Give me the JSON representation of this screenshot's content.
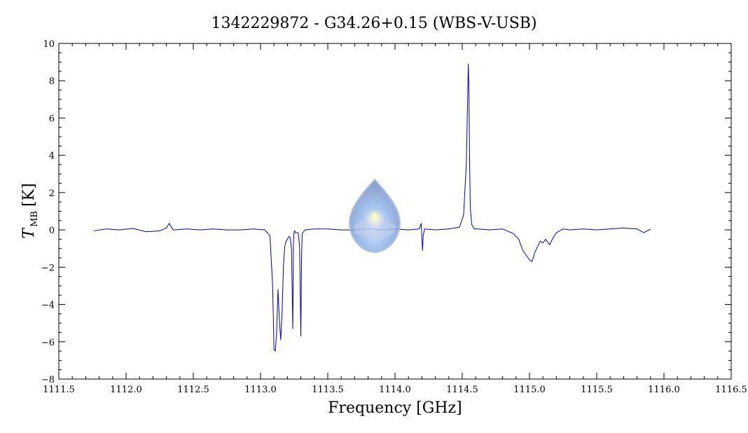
{
  "chart_data": {
    "type": "line",
    "title": "1342229872 - G34.26+0.15 (WBS-V-USB)",
    "xlabel": "Frequency [GHz]",
    "ylabel": "T",
    "ylabel_subscript": "MB",
    "ylabel_unit": "[K]",
    "xlim": [
      1111.5,
      1116.5
    ],
    "ylim": [
      -8,
      10
    ],
    "x_ticks": [
      1111.5,
      1112.0,
      1112.5,
      1113.0,
      1113.5,
      1114.0,
      1114.5,
      1115.0,
      1115.5,
      1116.0,
      1116.5
    ],
    "x_tick_labels": [
      "1111.5",
      "1112.0",
      "1112.5",
      "1113.0",
      "1113.5",
      "1114.0",
      "1114.5",
      "1115.0",
      "1115.5",
      "1116.0",
      "1116.5"
    ],
    "y_ticks": [
      -8,
      -6,
      -4,
      -2,
      0,
      2,
      4,
      6,
      8,
      10
    ],
    "y_tick_labels": [
      "−8",
      "−6",
      "−4",
      "−2",
      "0",
      "2",
      "4",
      "6",
      "8",
      "10"
    ],
    "grid": false,
    "line_color": "#0000cc",
    "logo": "herschel-droplet-logo",
    "series": [
      {
        "x": [
          1111.76,
          1111.85,
          1111.95,
          1112.05,
          1112.15,
          1112.25,
          1112.3,
          1112.32,
          1112.35,
          1112.45,
          1112.55,
          1112.65,
          1112.75,
          1112.85,
          1112.95,
          1113.03,
          1113.07,
          1113.09,
          1113.1,
          1113.11,
          1113.12,
          1113.13,
          1113.14,
          1113.15,
          1113.16,
          1113.17,
          1113.18,
          1113.19,
          1113.2,
          1113.21,
          1113.22,
          1113.23,
          1113.24,
          1113.245,
          1113.25,
          1113.255,
          1113.26,
          1113.28,
          1113.29,
          1113.295,
          1113.3,
          1113.305,
          1113.31,
          1113.33,
          1113.4,
          1113.5,
          1113.6,
          1113.7,
          1113.8,
          1113.9,
          1114.0,
          1114.1,
          1114.18,
          1114.195,
          1114.2,
          1114.205,
          1114.21,
          1114.22,
          1114.3,
          1114.4,
          1114.48,
          1114.51,
          1114.53,
          1114.54,
          1114.545,
          1114.55,
          1114.555,
          1114.56,
          1114.57,
          1114.59,
          1114.62,
          1114.7,
          1114.8,
          1114.88,
          1114.92,
          1114.95,
          1114.98,
          1115.0,
          1115.02,
          1115.04,
          1115.06,
          1115.08,
          1115.1,
          1115.12,
          1115.15,
          1115.17,
          1115.2,
          1115.25,
          1115.3,
          1115.4,
          1115.5,
          1115.6,
          1115.7,
          1115.8,
          1115.85,
          1115.9
        ],
        "y": [
          -0.05,
          0.05,
          0.0,
          0.08,
          -0.1,
          -0.05,
          0.1,
          0.35,
          0.0,
          0.05,
          0.0,
          0.05,
          0.0,
          0.0,
          0.05,
          0.0,
          -0.3,
          -3.0,
          -6.4,
          -6.5,
          -5.5,
          -3.2,
          -4.8,
          -5.9,
          -4.5,
          -2.0,
          -0.9,
          -0.6,
          -0.5,
          -0.35,
          -0.4,
          -1.0,
          -5.3,
          -0.5,
          -0.1,
          -0.05,
          -0.15,
          -0.15,
          -0.8,
          -3.0,
          -5.7,
          -1.5,
          -0.2,
          0.0,
          0.05,
          0.05,
          0.0,
          0.0,
          0.05,
          0.0,
          0.05,
          0.0,
          0.05,
          0.35,
          -0.5,
          -1.1,
          -0.3,
          0.05,
          0.0,
          0.05,
          0.15,
          0.8,
          3.5,
          7.0,
          8.9,
          7.5,
          3.5,
          1.2,
          0.3,
          0.05,
          0.05,
          0.0,
          0.05,
          -0.2,
          -0.5,
          -1.1,
          -1.4,
          -1.6,
          -1.7,
          -1.2,
          -0.9,
          -0.6,
          -0.7,
          -0.5,
          -0.8,
          -0.5,
          -0.15,
          0.05,
          0.0,
          0.05,
          0.0,
          0.05,
          0.1,
          0.05,
          -0.15,
          0.05
        ]
      }
    ]
  }
}
